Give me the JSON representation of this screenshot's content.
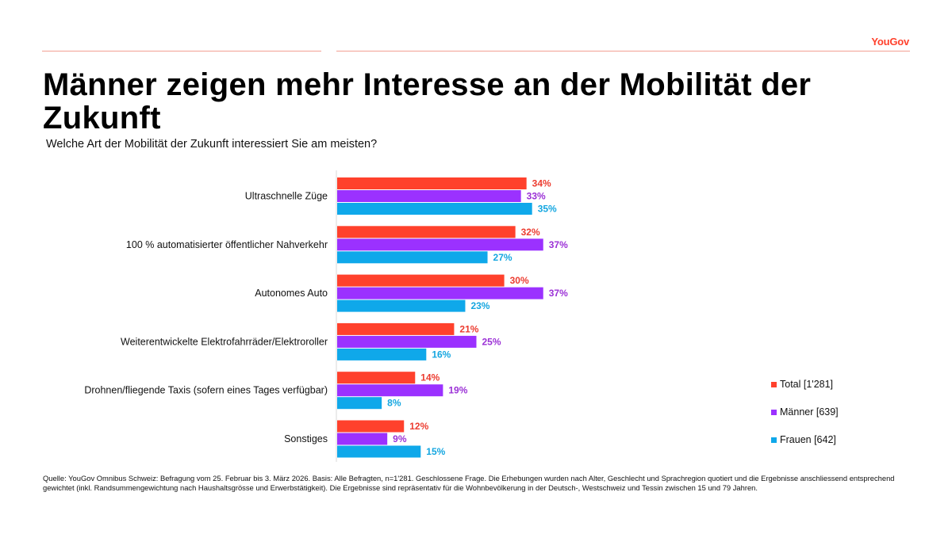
{
  "brand": {
    "logo_text": "YouGov"
  },
  "header": {
    "title": "Männer zeigen mehr Interesse an der Mobilität der Zukunft",
    "subtitle": "Welche Art der Mobilität der Zukunft interessiert Sie am meisten?"
  },
  "chart_data": {
    "type": "bar",
    "orientation": "horizontal",
    "title": "Männer zeigen mehr Interesse an der Mobilität der Zukunft",
    "subtitle": "Welche Art der Mobilität der Zukunft interessiert Sie am meisten?",
    "categories": [
      "Ultraschnelle Züge",
      "100 % automatisierter öffentlicher Nahverkehr",
      "Autonomes Auto",
      "Weiterentwickelte Elektrofahrräder/Elektroroller",
      "Drohnen/fliegende Taxis (sofern eines Tages verfügbar)",
      "Sonstiges"
    ],
    "series": [
      {
        "name": "Total [1'281]",
        "color": "#ff412c",
        "values": [
          34,
          32,
          30,
          21,
          14,
          12
        ]
      },
      {
        "name": "Männer [639]",
        "color": "#9b31ff",
        "values": [
          33,
          37,
          37,
          25,
          19,
          9
        ]
      },
      {
        "name": "Frauen [642]",
        "color": "#0fa8ea",
        "values": [
          35,
          27,
          23,
          16,
          8,
          15
        ]
      }
    ],
    "unit": "%",
    "xlim": [
      0,
      100
    ],
    "legend_position": "right"
  },
  "legend": {
    "items": [
      "Total [1'281]",
      "Männer [639]",
      "Frauen [642]"
    ]
  },
  "footnote": "Quelle: YouGov Omnibus Schweiz: Befragung vom 25. Februar bis 3. März 2026. Basis: Alle Befragten, n=1'281. Geschlossene Frage. Die Erhebungen wurden nach Alter, Geschlecht und Sprachregion quotiert und die Ergebnisse anschliessend entsprechend gewichtet (inkl. Randsummengewichtung nach Haushaltsgrösse und Erwerbstätigkeit). Die Ergebnisse sind repräsentativ für die Wohnbevölkerung in der Deutsch-, Westschweiz und Tessin zwischen 15 und 79 Jahren."
}
